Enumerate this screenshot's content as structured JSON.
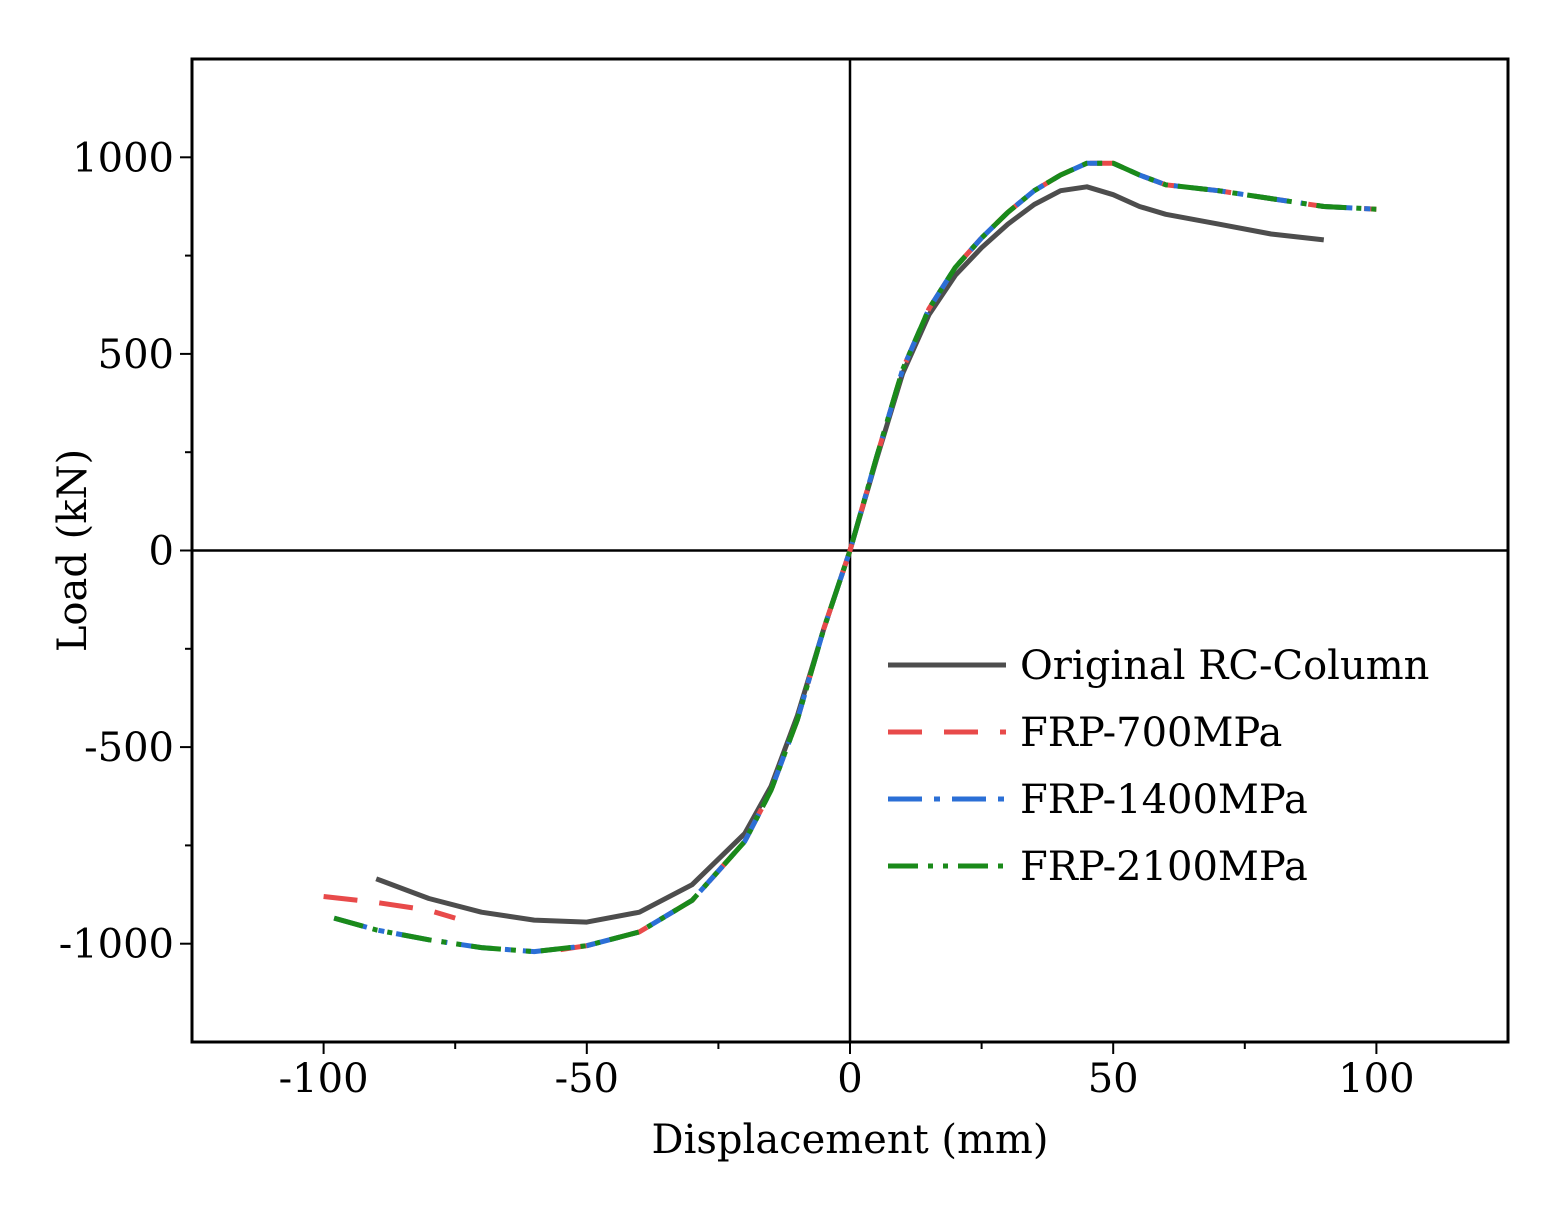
{
  "chart_data": {
    "type": "line",
    "title": "",
    "xlabel": "Displacement (mm)",
    "ylabel": "Load (kN)",
    "xlim": [
      -125,
      125
    ],
    "ylim": [
      -1250,
      1250
    ],
    "x_ticks": [
      -100,
      -50,
      0,
      50,
      100
    ],
    "y_ticks": [
      -1000,
      -500,
      0,
      500,
      1000
    ],
    "x_tick_labels": [
      "-100",
      "-50",
      "0",
      "50",
      "100"
    ],
    "y_tick_labels": [
      "-1000",
      "-500",
      "0",
      "500",
      "1000"
    ],
    "grid": false,
    "zero_lines": true,
    "legend_position": "center-right",
    "series": [
      {
        "name": "Original RC-Column",
        "color": "#4d4d4d",
        "style": "solid",
        "x": [
          -90,
          -80,
          -70,
          -60,
          -50,
          -40,
          -30,
          -20,
          -15,
          -10,
          -5,
          0,
          5,
          10,
          15,
          20,
          25,
          30,
          35,
          40,
          45,
          50,
          55,
          60,
          70,
          80,
          90
        ],
        "y": [
          -835,
          -885,
          -920,
          -940,
          -945,
          -920,
          -850,
          -720,
          -600,
          -420,
          -200,
          0,
          230,
          450,
          600,
          700,
          770,
          830,
          880,
          915,
          925,
          905,
          875,
          855,
          830,
          805,
          790
        ]
      },
      {
        "name": "FRP-700MPa",
        "color": "#e84a4a",
        "style": "dashed",
        "x": [
          -100,
          -90,
          -80,
          -75
        ],
        "y": [
          -880,
          -895,
          -915,
          -935
        ]
      },
      {
        "name": "FRP-700MPa",
        "color": "#e84a4a",
        "style": "dashed",
        "x": [
          -55,
          -50,
          -40,
          -30,
          -20,
          -15,
          -10,
          -5,
          0,
          5,
          10,
          15,
          20,
          25,
          30,
          35,
          40,
          45,
          50,
          55,
          60,
          70,
          80,
          90,
          100
        ],
        "y": [
          -1015,
          -1005,
          -970,
          -890,
          -740,
          -610,
          -430,
          -200,
          0,
          235,
          460,
          615,
          720,
          795,
          860,
          915,
          955,
          985,
          985,
          955,
          930,
          915,
          895,
          875,
          868
        ]
      },
      {
        "name": "FRP-1400MPa",
        "color": "#2b6fd6",
        "style": "dashdot",
        "x": [
          -98,
          -90,
          -80,
          -70,
          -60,
          -50,
          -40,
          -30,
          -20,
          -15,
          -10,
          -5,
          0,
          5,
          10,
          15,
          20,
          25,
          30,
          35,
          40,
          45,
          50,
          55,
          60,
          70,
          80,
          90,
          100
        ],
        "y": [
          -935,
          -965,
          -990,
          -1010,
          -1020,
          -1005,
          -970,
          -890,
          -740,
          -610,
          -430,
          -200,
          0,
          235,
          460,
          615,
          720,
          795,
          860,
          915,
          955,
          985,
          985,
          955,
          930,
          915,
          895,
          875,
          868
        ]
      },
      {
        "name": "FRP-2100MPa",
        "color": "#1a8a1a",
        "style": "dashdotdot",
        "x": [
          -98,
          -90,
          -80,
          -70,
          -60,
          -50,
          -40,
          -30,
          -20,
          -15,
          -10,
          -5,
          0,
          5,
          10,
          15,
          20,
          25,
          30,
          35,
          40,
          45,
          50,
          55,
          60,
          70,
          80,
          90,
          100
        ],
        "y": [
          -935,
          -965,
          -990,
          -1010,
          -1020,
          -1005,
          -970,
          -890,
          -740,
          -610,
          -430,
          -200,
          0,
          235,
          460,
          615,
          720,
          795,
          860,
          915,
          955,
          985,
          985,
          955,
          930,
          915,
          895,
          875,
          868
        ]
      }
    ],
    "legend": [
      {
        "label": "Original RC-Column",
        "color": "#4d4d4d",
        "style": "solid"
      },
      {
        "label": "FRP-700MPa",
        "color": "#e84a4a",
        "style": "dashed"
      },
      {
        "label": "FRP-1400MPa",
        "color": "#2b6fd6",
        "style": "dashdot"
      },
      {
        "label": "FRP-2100MPa",
        "color": "#1a8a1a",
        "style": "dashdotdot"
      }
    ]
  }
}
